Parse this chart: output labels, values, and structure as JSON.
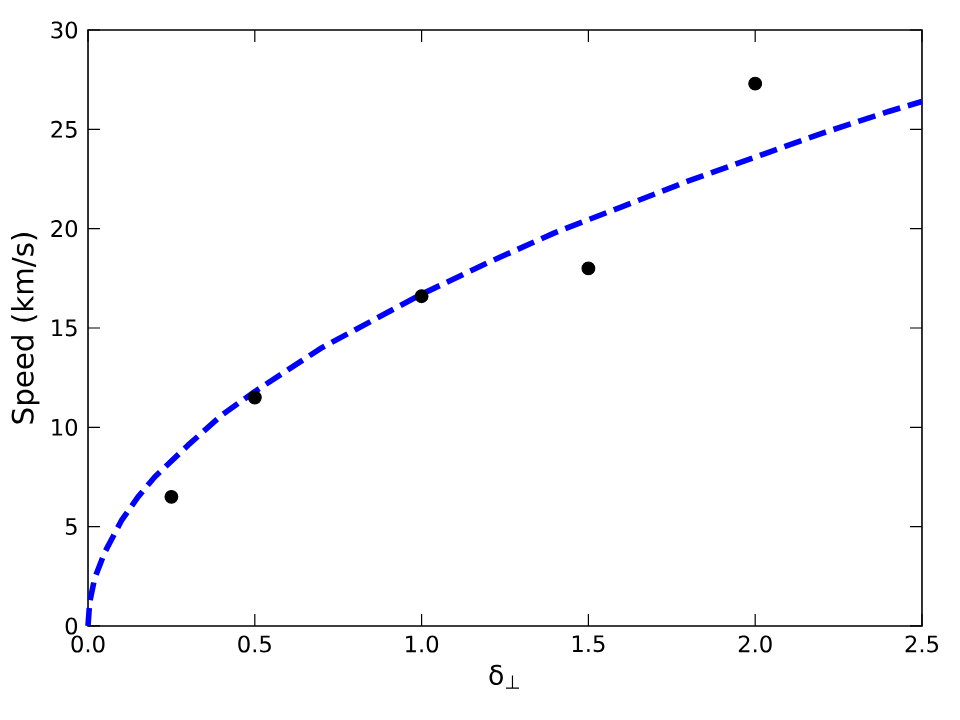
{
  "chart_data": {
    "type": "scatter",
    "xlabel": "δ$_{⊥}$",
    "ylabel": "Speed (km/s)",
    "marker": "circle",
    "xlim": [
      0,
      2.5
    ],
    "ylim": [
      0,
      30
    ],
    "xticks": [
      {
        "value": 0,
        "label": "0.0"
      },
      {
        "value": 0.5,
        "label": "0.5"
      },
      {
        "value": 1,
        "label": "1.0"
      },
      {
        "value": 1.5,
        "label": "1.5"
      },
      {
        "value": 2,
        "label": "2.0"
      },
      {
        "value": 2.5,
        "label": "2.5"
      }
    ],
    "yticks": [
      0,
      5,
      10,
      15,
      20,
      25,
      30
    ],
    "series": [
      {
        "color": "#000000",
        "x": [
          0.25,
          0.5,
          1.0,
          1.5,
          2.0
        ],
        "values": [
          6.5,
          11.5,
          16.6,
          18.0,
          27.3
        ]
      },
      {
        "type": "line",
        "color": "#0000ff",
        "line_style": "dashed",
        "marker": "none",
        "x": [
          0,
          0.005,
          0.02,
          0.05,
          0.1,
          0.15,
          0.2,
          0.3,
          0.4,
          0.5,
          0.6,
          0.7,
          0.8,
          0.9,
          1.0,
          1.2,
          1.4,
          1.6,
          1.8,
          2.0,
          2.2,
          2.4,
          2.5
        ],
        "values": [
          0,
          1.2,
          2.4,
          3.7,
          5.3,
          6.5,
          7.5,
          9.1,
          10.6,
          11.8,
          12.9,
          14.0,
          14.9,
          15.8,
          16.7,
          18.3,
          19.8,
          21.1,
          22.4,
          23.6,
          24.8,
          25.9,
          26.4
        ]
      }
    ]
  }
}
